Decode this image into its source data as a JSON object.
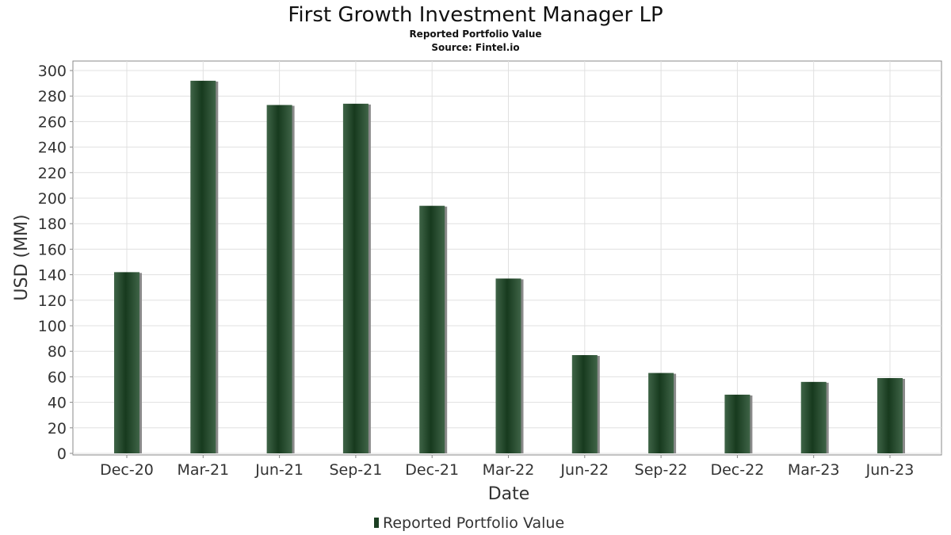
{
  "chart_data": {
    "type": "bar",
    "title": "First Growth Investment Manager LP",
    "subtitle_lines": [
      "Reported Portfolio Value",
      "Source: Fintel.io"
    ],
    "xlabel": "Date",
    "ylabel": "USD (MM)",
    "categories": [
      "Dec-20",
      "Mar-21",
      "Jun-21",
      "Sep-21",
      "Dec-21",
      "Mar-22",
      "Jun-22",
      "Sep-22",
      "Dec-22",
      "Mar-23",
      "Jun-23"
    ],
    "series": [
      {
        "name": "Reported Portfolio Value",
        "values": [
          142,
          292,
          273,
          274,
          194,
          137,
          77,
          63,
          46,
          56,
          59
        ]
      }
    ],
    "ylim": [
      0,
      307
    ],
    "yticks": [
      0,
      20,
      40,
      60,
      80,
      100,
      120,
      140,
      160,
      180,
      200,
      220,
      240,
      260,
      280,
      300
    ],
    "grid": true,
    "legend": "bottom",
    "colors": {
      "bar_dark": "#1b3f22",
      "bar_light": "#3f6447",
      "bar_shadow": "#8a8a8a",
      "grid": "#e0e0e0",
      "frame": "#888888"
    }
  }
}
